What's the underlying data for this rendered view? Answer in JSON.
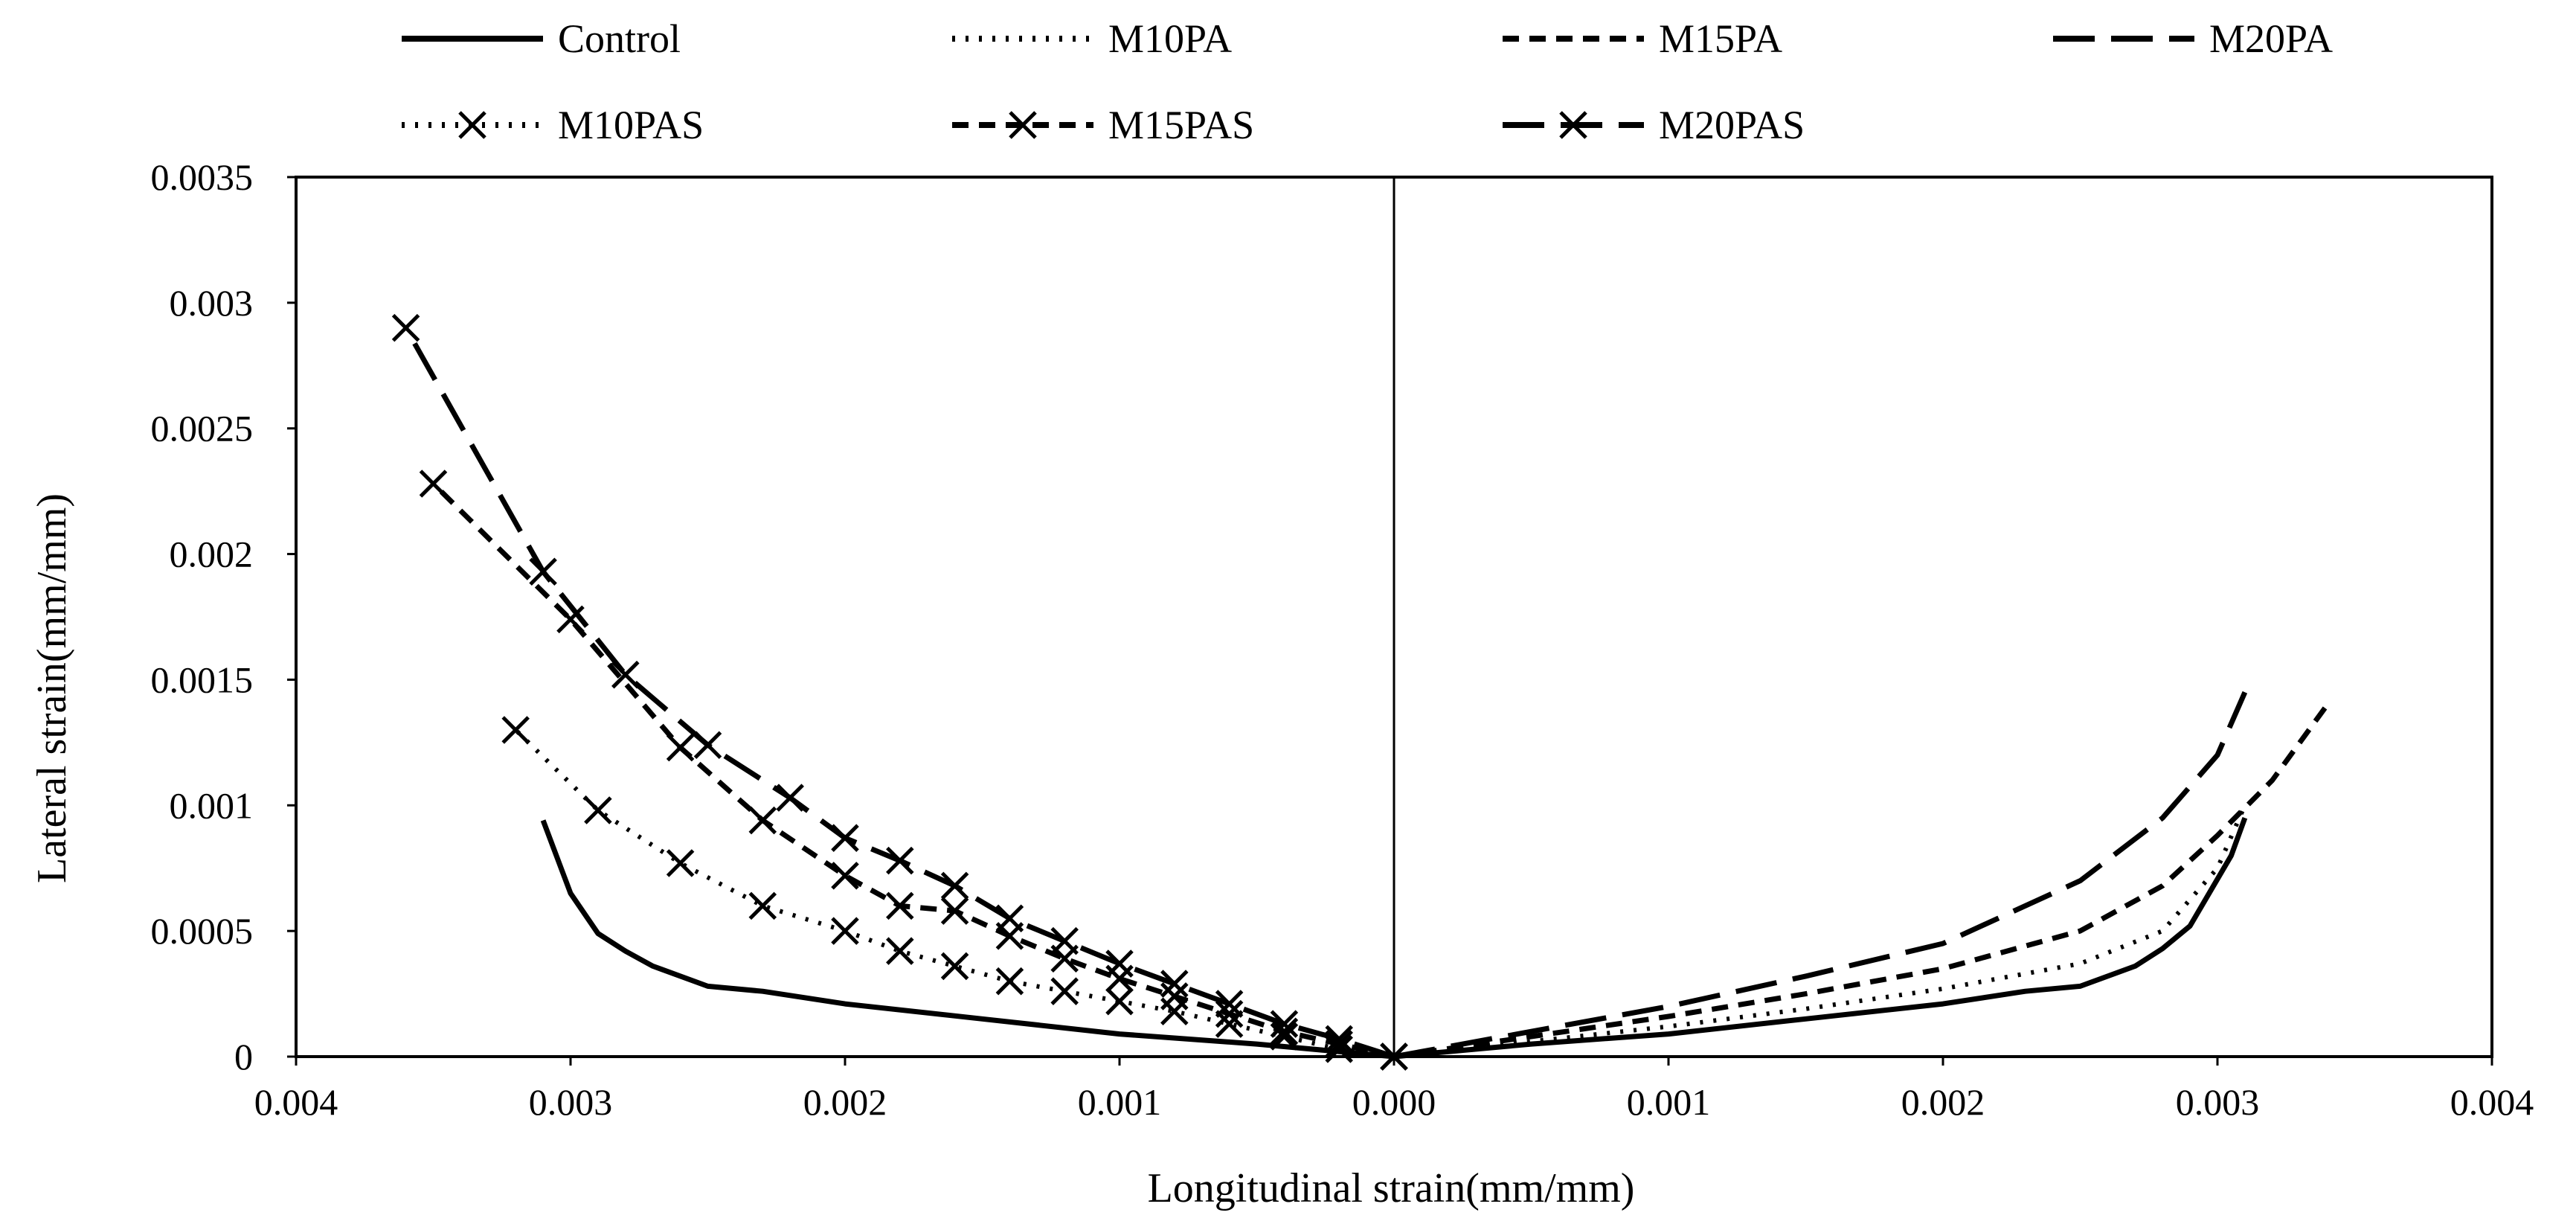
{
  "chart_data": {
    "type": "line",
    "title": "",
    "xlabel": "Longitudinal strain(mm/mm)",
    "ylabel": "Lateral strain(mm/mm)",
    "xlim": [
      -0.004,
      0.004
    ],
    "ylim": [
      0,
      0.0035
    ],
    "x_tick_values": [
      -0.004,
      -0.003,
      -0.002,
      -0.001,
      0,
      0.001,
      0.002,
      0.003,
      0.004
    ],
    "x_tick_labels": [
      "0.004",
      "0.003",
      "0.002",
      "0.001",
      "0.000",
      "0.001",
      "0.002",
      "0.003",
      "0.004"
    ],
    "y_tick_values": [
      0,
      0.0005,
      0.001,
      0.0015,
      0.002,
      0.0025,
      0.003,
      0.0035
    ],
    "y_tick_labels": [
      "0",
      "0.0005",
      "0.001",
      "0.0015",
      "0.002",
      "0.0025",
      "0.003",
      "0.0035"
    ],
    "grid": false,
    "legend_position": "top",
    "note": "Negative x values are plotted on the left half, whose tick labels are printed without the minus sign.",
    "series": [
      {
        "name": "Control",
        "style": "solid",
        "marker": "none",
        "points": [
          [
            0,
            0
          ],
          [
            0.0005,
            5e-05
          ],
          [
            0.001,
            9e-05
          ],
          [
            0.0015,
            0.00015
          ],
          [
            0.002,
            0.00021
          ],
          [
            0.0023,
            0.00026
          ],
          [
            0.0025,
            0.00028
          ],
          [
            0.0027,
            0.00036
          ],
          [
            0.0028,
            0.00043
          ],
          [
            0.0029,
            0.00052
          ],
          [
            0.00305,
            0.0008
          ],
          [
            0.0031,
            0.00095
          ],
          [
            0,
            0
          ],
          [
            -0.0005,
            5e-05
          ],
          [
            -0.001,
            9e-05
          ],
          [
            -0.0015,
            0.00015
          ],
          [
            -0.002,
            0.00021
          ],
          [
            -0.0023,
            0.00026
          ],
          [
            -0.0025,
            0.00028
          ],
          [
            -0.0027,
            0.00036
          ],
          [
            -0.0028,
            0.00042
          ],
          [
            -0.0029,
            0.00049
          ],
          [
            -0.003,
            0.00065
          ],
          [
            -0.0031,
            0.00094
          ]
        ]
      },
      {
        "name": "M10PA",
        "style": "dotted",
        "marker": "none",
        "points": [
          [
            0,
            0
          ],
          [
            0.0005,
            6e-05
          ],
          [
            0.001,
            0.00012
          ],
          [
            0.0015,
            0.00019
          ],
          [
            0.002,
            0.00027
          ],
          [
            0.0025,
            0.00037
          ],
          [
            0.0028,
            0.0005
          ],
          [
            0.003,
            0.00075
          ],
          [
            0.0031,
            0.001
          ]
        ]
      },
      {
        "name": "M15PA",
        "style": "dashed",
        "marker": "none",
        "points": [
          [
            0,
            0
          ],
          [
            0.0005,
            8e-05
          ],
          [
            0.001,
            0.00016
          ],
          [
            0.0015,
            0.00025
          ],
          [
            0.002,
            0.00035
          ],
          [
            0.0025,
            0.0005
          ],
          [
            0.0028,
            0.00068
          ],
          [
            0.003,
            0.00088
          ],
          [
            0.0032,
            0.0011
          ],
          [
            0.0034,
            0.0014
          ]
        ]
      },
      {
        "name": "M20PA",
        "style": "long-dash",
        "marker": "none",
        "points": [
          [
            0,
            0
          ],
          [
            0.0005,
            0.0001
          ],
          [
            0.001,
            0.0002
          ],
          [
            0.0015,
            0.00032
          ],
          [
            0.002,
            0.00045
          ],
          [
            0.0025,
            0.0007
          ],
          [
            0.0028,
            0.00095
          ],
          [
            0.003,
            0.0012
          ],
          [
            0.0031,
            0.00145
          ]
        ]
      },
      {
        "name": "M10PAS",
        "style": "dotted",
        "marker": "x",
        "points": [
          [
            0,
            0
          ],
          [
            -0.0002,
            3e-05
          ],
          [
            -0.0004,
            8e-05
          ],
          [
            -0.0006,
            0.00013
          ],
          [
            -0.0008,
            0.00018
          ],
          [
            -0.001,
            0.00022
          ],
          [
            -0.0012,
            0.00026
          ],
          [
            -0.0014,
            0.0003
          ],
          [
            -0.0016,
            0.00036
          ],
          [
            -0.0018,
            0.00042
          ],
          [
            -0.002,
            0.0005
          ],
          [
            -0.0023,
            0.0006
          ],
          [
            -0.0026,
            0.00077
          ],
          [
            -0.0029,
            0.00098
          ],
          [
            -0.0032,
            0.0013
          ]
        ]
      },
      {
        "name": "M15PAS",
        "style": "dashed",
        "marker": "x",
        "points": [
          [
            0,
            0
          ],
          [
            -0.0002,
            5e-05
          ],
          [
            -0.0004,
            0.0001
          ],
          [
            -0.0006,
            0.00017
          ],
          [
            -0.0008,
            0.00024
          ],
          [
            -0.001,
            0.00031
          ],
          [
            -0.0012,
            0.00039
          ],
          [
            -0.0014,
            0.00048
          ],
          [
            -0.0016,
            0.00058
          ],
          [
            -0.0018,
            0.0006
          ],
          [
            -0.002,
            0.00072
          ],
          [
            -0.0023,
            0.00094
          ],
          [
            -0.0026,
            0.00123
          ],
          [
            -0.003,
            0.00174
          ],
          [
            -0.0035,
            0.00228
          ]
        ]
      },
      {
        "name": "M20PAS",
        "style": "long-dash",
        "marker": "x",
        "points": [
          [
            0,
            0
          ],
          [
            -0.0002,
            7e-05
          ],
          [
            -0.0004,
            0.00013
          ],
          [
            -0.0006,
            0.00021
          ],
          [
            -0.0008,
            0.00029
          ],
          [
            -0.001,
            0.00037
          ],
          [
            -0.0012,
            0.00046
          ],
          [
            -0.0014,
            0.00055
          ],
          [
            -0.0016,
            0.00068
          ],
          [
            -0.0018,
            0.00078
          ],
          [
            -0.002,
            0.00087
          ],
          [
            -0.0022,
            0.00103
          ],
          [
            -0.0025,
            0.00124
          ],
          [
            -0.0028,
            0.00152
          ],
          [
            -0.0031,
            0.00193
          ],
          [
            -0.0036,
            0.0029
          ]
        ]
      }
    ]
  }
}
